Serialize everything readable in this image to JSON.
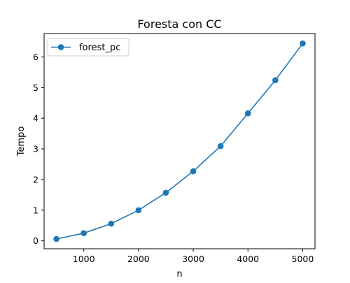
{
  "chart_data": {
    "type": "line",
    "title": "Foresta con CC",
    "xlabel": "n",
    "ylabel": "Tempo",
    "x": [
      500,
      1000,
      1500,
      2000,
      2500,
      3000,
      3500,
      4000,
      4500,
      5000
    ],
    "series": [
      {
        "name": "forest_pc",
        "values": [
          0.06,
          0.25,
          0.56,
          1.0,
          1.57,
          2.27,
          3.09,
          4.16,
          5.24,
          6.44
        ],
        "color": "#1f77b4",
        "marker": "circle"
      }
    ],
    "xlim": [
      275,
      5225
    ],
    "ylim": [
      -0.259,
      6.763
    ],
    "xticks": [
      1000,
      2000,
      3000,
      4000,
      5000
    ],
    "yticks": [
      0,
      1,
      2,
      3,
      4,
      5,
      6
    ],
    "grid": false,
    "legend_position": "upper-left"
  }
}
